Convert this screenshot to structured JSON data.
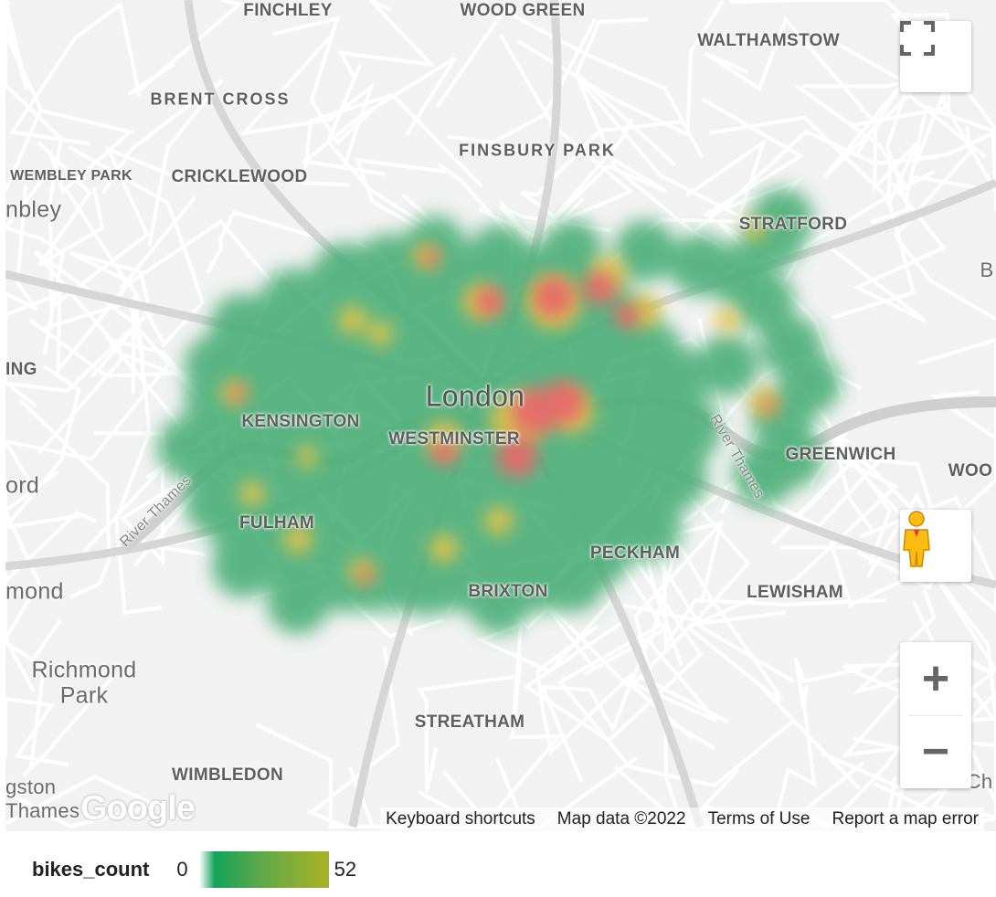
{
  "map": {
    "labels": {
      "finchley": "FINCHLEY",
      "wood_green": "WOOD GREEN",
      "walthamstow": "WALTHAMSTOW",
      "brent_cross": "BRENT CROSS",
      "finsbury_park": "FINSBURY PARK",
      "wembley_park": "WEMBLEY PARK",
      "cricklewood": "CRICKLEWOOD",
      "wembley_partial": "nbley",
      "stratford": "STRATFORD",
      "b_partial": "B",
      "ing_partial": "ING",
      "london": "London",
      "kensington": "KENSINGTON",
      "westminster": "WESTMINSTER",
      "greenwich": "GREENWICH",
      "woo_partial": "WOO",
      "ord_partial": "ord",
      "fulham": "FULHAM",
      "peckham": "PECKHAM",
      "brixton": "BRIXTON",
      "lewisham": "LEWISHAM",
      "mond_partial": "mond",
      "richmond": "Richmond",
      "park": "Park",
      "streatham": "STREATHAM",
      "wimbledon": "WIMBLEDON",
      "gston_partial": "gston",
      "thames_partial": "Thames",
      "ch_partial": "Ch",
      "river_thames_w": "River Thames",
      "river_thames_e": "River Thames"
    },
    "logo": "Google",
    "footer": {
      "keyboard": "Keyboard shortcuts",
      "map_data": "Map data ©2022",
      "terms": "Terms of Use",
      "report": "Report a map error"
    },
    "controls": {
      "fullscreen": "fullscreen-icon",
      "pegman": "pegman-icon",
      "zoom_in": "+",
      "zoom_out": "−"
    },
    "heatmap_colors": {
      "low": "#4caf78",
      "mid": "#e6c34a",
      "high": "#e8666a"
    }
  },
  "legend": {
    "field": "bikes_count",
    "min": "0",
    "max": "52",
    "gradient": [
      "#13a35b",
      "#aab224"
    ]
  }
}
